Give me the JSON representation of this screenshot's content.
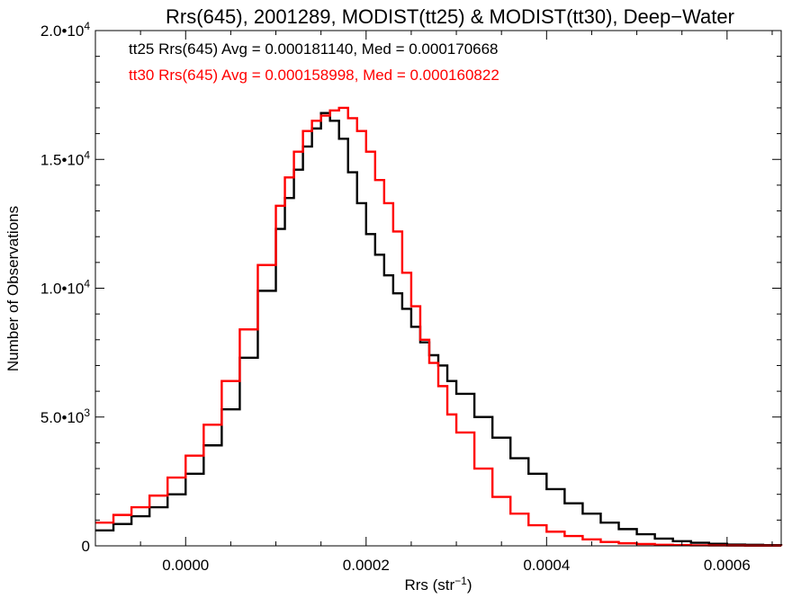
{
  "chart_data": {
    "type": "line",
    "title": "Rrs(645), 2001289, MODIST(tt25) & MODIST(tt30), Deep−Water",
    "xlabel_base": "Rrs (str",
    "xlabel_sup": "−1",
    "xlabel_tail": ")",
    "ylabel": "Number of Observations",
    "xlim": [
      -0.0001,
      0.00066
    ],
    "ylim": [
      0,
      20000
    ],
    "grid": false,
    "x_ticks": [
      {
        "value": 0.0,
        "label": "0.0000"
      },
      {
        "value": 0.0002,
        "label": "0.0002"
      },
      {
        "value": 0.0004,
        "label": "0.0004"
      },
      {
        "value": 0.0006,
        "label": "0.0006"
      }
    ],
    "x_minor_step": 5e-05,
    "y_ticks": [
      {
        "value": 0,
        "base": "0",
        "sup": ""
      },
      {
        "value": 5000,
        "base": "5.0•10",
        "sup": "3"
      },
      {
        "value": 10000,
        "base": "1.0•10",
        "sup": "4"
      },
      {
        "value": 15000,
        "base": "1.5•10",
        "sup": "4"
      },
      {
        "value": 20000,
        "base": "2.0•10",
        "sup": "4"
      }
    ],
    "y_minor_step": 1000,
    "annotations": [
      {
        "text": "tt25 Rrs(645) Avg = 0.000181140, Med = 0.000170668",
        "color": "#000000"
      },
      {
        "text": "tt30 Rrs(645) Avg = 0.000158998, Med = 0.000160822",
        "color": "#ff0000"
      }
    ],
    "series": [
      {
        "color": "#000000",
        "x": [
          -0.0001,
          -8e-05,
          -6e-05,
          -4e-05,
          -2e-05,
          0.0,
          2e-05,
          4e-05,
          6e-05,
          8e-05,
          0.0001,
          0.00011,
          0.00012,
          0.00013,
          0.00014,
          0.00015,
          0.00016,
          0.00017,
          0.00018,
          0.00019,
          0.0002,
          0.00021,
          0.00022,
          0.00023,
          0.00024,
          0.00025,
          0.00026,
          0.00027,
          0.00028,
          0.00029,
          0.0003,
          0.00032,
          0.00034,
          0.00036,
          0.00038,
          0.0004,
          0.00042,
          0.00044,
          0.00046,
          0.00048,
          0.0005,
          0.00052,
          0.00054,
          0.00056,
          0.00058,
          0.0006,
          0.00062,
          0.00064,
          0.00066
        ],
        "y": [
          600,
          850,
          1150,
          1500,
          2000,
          2800,
          3900,
          5300,
          7300,
          9900,
          12300,
          13500,
          14600,
          15500,
          16200,
          16800,
          16500,
          15800,
          14500,
          13300,
          12100,
          11300,
          10500,
          9800,
          9200,
          8500,
          7900,
          7400,
          7000,
          6400,
          5900,
          5000,
          4200,
          3400,
          2800,
          2200,
          1650,
          1250,
          900,
          650,
          450,
          280,
          180,
          120,
          80,
          50,
          40,
          30,
          20
        ]
      },
      {
        "color": "#ff0000",
        "x": [
          -0.0001,
          -8e-05,
          -6e-05,
          -4e-05,
          -2e-05,
          0.0,
          2e-05,
          4e-05,
          6e-05,
          8e-05,
          0.0001,
          0.00011,
          0.00012,
          0.00013,
          0.00014,
          0.00015,
          0.00016,
          0.00017,
          0.00018,
          0.00019,
          0.0002,
          0.00021,
          0.00022,
          0.00023,
          0.00024,
          0.00025,
          0.00026,
          0.00027,
          0.00028,
          0.00029,
          0.0003,
          0.00032,
          0.00034,
          0.00036,
          0.00038,
          0.0004,
          0.00042,
          0.00044,
          0.00046,
          0.00048,
          0.0005,
          0.00052,
          0.00054,
          0.00056,
          0.00058,
          0.0006,
          0.00062,
          0.00064,
          0.00066
        ],
        "y": [
          900,
          1200,
          1500,
          1950,
          2650,
          3500,
          4700,
          6400,
          8400,
          10900,
          13200,
          14300,
          15300,
          16100,
          16500,
          16700,
          16900,
          17000,
          16600,
          16100,
          15300,
          14200,
          13300,
          12200,
          10600,
          9300,
          8000,
          7100,
          6200,
          5100,
          4400,
          3000,
          1900,
          1250,
          800,
          550,
          380,
          250,
          150,
          100,
          70,
          40,
          30,
          20,
          15,
          10,
          8,
          6,
          5
        ]
      }
    ]
  }
}
